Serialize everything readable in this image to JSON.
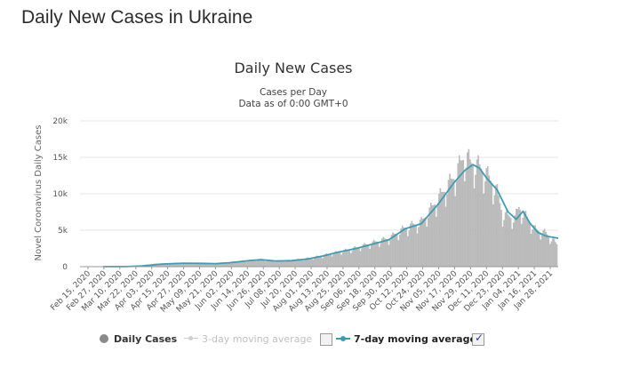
{
  "page": {
    "title": "Daily New Cases in Ukraine"
  },
  "chart_data": {
    "type": "bar",
    "title": "Daily New Cases",
    "subtitle_lines": [
      "Cases per Day",
      "Data as of 0:00 GMT+0"
    ],
    "ylabel": "Novel Coronavirus Daily Cases",
    "xlabel": "",
    "ylim": [
      0,
      20000
    ],
    "y_ticks": [
      "0",
      "5k",
      "10k",
      "15k",
      "20k"
    ],
    "y_tick_values": [
      0,
      5000,
      10000,
      15000,
      20000
    ],
    "x_tick_labels": [
      "Feb 15, 2020",
      "Feb 27, 2020",
      "Mar 10, 2020",
      "Mar 22, 2020",
      "Apr 03, 2020",
      "Apr 15, 2020",
      "Apr 27, 2020",
      "May 09, 2020",
      "May 21, 2020",
      "Jun 02, 2020",
      "Jun 14, 2020",
      "Jun 26, 2020",
      "Jul 08, 2020",
      "Jul 20, 2020",
      "Aug 01, 2020",
      "Aug 13, 2020",
      "Aug 25, 2020",
      "Sep 06, 2020",
      "Sep 18, 2020",
      "Sep 30, 2020",
      "Oct 12, 2020",
      "Oct 24, 2020",
      "Nov 05, 2020",
      "Nov 17, 2020",
      "Nov 29, 2020",
      "Dec 11, 2020",
      "Dec 23, 2020",
      "Jan 04, 2021",
      "Jan 16, 2021",
      "Jan 28, 2021"
    ],
    "x_range": [
      "2020-02-15",
      "2021-02-02"
    ],
    "series": [
      {
        "name": "Daily Cases",
        "kind": "bar",
        "color": "#bfbfbf",
        "points": [
          [
            "2020-03-03",
            0
          ],
          [
            "2020-03-20",
            10
          ],
          [
            "2020-04-01",
            150
          ],
          [
            "2020-04-10",
            350
          ],
          [
            "2020-04-25",
            450
          ],
          [
            "2020-05-05",
            450
          ],
          [
            "2020-05-20",
            400
          ],
          [
            "2020-06-01",
            500
          ],
          [
            "2020-06-15",
            750
          ],
          [
            "2020-06-26",
            950
          ],
          [
            "2020-07-08",
            750
          ],
          [
            "2020-07-20",
            850
          ],
          [
            "2020-08-01",
            1100
          ],
          [
            "2020-08-13",
            1500
          ],
          [
            "2020-08-25",
            2000
          ],
          [
            "2020-09-06",
            2500
          ],
          [
            "2020-09-18",
            3200
          ],
          [
            "2020-09-30",
            3800
          ],
          [
            "2020-10-12",
            5200
          ],
          [
            "2020-10-24",
            6000
          ],
          [
            "2020-11-05",
            9000
          ],
          [
            "2020-11-17",
            12000
          ],
          [
            "2020-11-25",
            15000
          ],
          [
            "2020-11-29",
            14000
          ],
          [
            "2020-12-05",
            13500
          ],
          [
            "2020-12-11",
            12500
          ],
          [
            "2020-12-19",
            10000
          ],
          [
            "2020-12-23",
            7000
          ],
          [
            "2021-01-01",
            6500
          ],
          [
            "2021-01-04",
            8000
          ],
          [
            "2021-01-10",
            6500
          ],
          [
            "2021-01-16",
            5000
          ],
          [
            "2021-01-24",
            4500
          ],
          [
            "2021-02-01",
            3000
          ]
        ]
      },
      {
        "name": "3-day moving average",
        "kind": "line",
        "color": "#cccccc",
        "visible": false
      },
      {
        "name": "7-day moving average",
        "kind": "line",
        "color": "#3b9db3",
        "visible": true,
        "points": [
          [
            "2020-03-03",
            0
          ],
          [
            "2020-03-20",
            10
          ],
          [
            "2020-04-01",
            100
          ],
          [
            "2020-04-15",
            350
          ],
          [
            "2020-05-01",
            470
          ],
          [
            "2020-05-15",
            450
          ],
          [
            "2020-05-25",
            420
          ],
          [
            "2020-06-05",
            550
          ],
          [
            "2020-06-20",
            850
          ],
          [
            "2020-06-28",
            950
          ],
          [
            "2020-07-08",
            780
          ],
          [
            "2020-07-20",
            820
          ],
          [
            "2020-08-01",
            1050
          ],
          [
            "2020-08-13",
            1500
          ],
          [
            "2020-08-25",
            2050
          ],
          [
            "2020-09-06",
            2500
          ],
          [
            "2020-09-18",
            3100
          ],
          [
            "2020-09-30",
            3700
          ],
          [
            "2020-10-12",
            5200
          ],
          [
            "2020-10-24",
            5900
          ],
          [
            "2020-11-05",
            8500
          ],
          [
            "2020-11-17",
            11500
          ],
          [
            "2020-11-25",
            13200
          ],
          [
            "2020-12-01",
            14000
          ],
          [
            "2020-12-06",
            13500
          ],
          [
            "2020-12-11",
            12200
          ],
          [
            "2020-12-19",
            10500
          ],
          [
            "2020-12-27",
            7500
          ],
          [
            "2021-01-02",
            6500
          ],
          [
            "2021-01-07",
            7600
          ],
          [
            "2021-01-12",
            6000
          ],
          [
            "2021-01-18",
            4700
          ],
          [
            "2021-01-24",
            4200
          ],
          [
            "2021-02-02",
            3900
          ]
        ]
      }
    ]
  },
  "legend": [
    {
      "label": "Daily Cases",
      "state": "active",
      "color": "#8a8a8a"
    },
    {
      "label": "3-day moving average",
      "state": "inactive",
      "color": "#c8c8c8",
      "checked": false
    },
    {
      "label": "7-day moving average",
      "state": "active",
      "color": "#3b9db3",
      "checked": true
    }
  ],
  "icons": {
    "checkmark": "✓"
  }
}
